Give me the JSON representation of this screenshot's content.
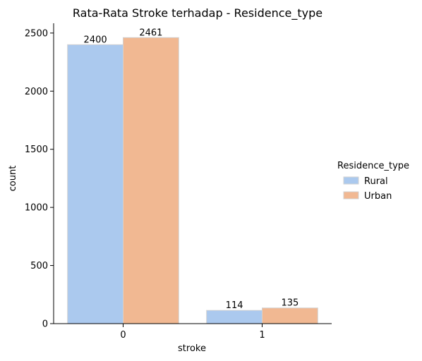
{
  "chart_data": {
    "type": "bar",
    "title": "Rata-Rata Stroke terhadap - Residence_type",
    "xlabel": "stroke",
    "ylabel": "count",
    "categories": [
      "0",
      "1"
    ],
    "series": [
      {
        "name": "Rural",
        "values": [
          2400,
          114
        ],
        "color": "#abc9ee"
      },
      {
        "name": "Urban",
        "values": [
          2461,
          135
        ],
        "color": "#f1b892"
      }
    ],
    "ylim": [
      0,
      2584
    ],
    "yticks": [
      0,
      500,
      1000,
      1500,
      2000,
      2500
    ],
    "legend": {
      "title": "Residence_type",
      "placement": "right"
    },
    "grid": false
  }
}
